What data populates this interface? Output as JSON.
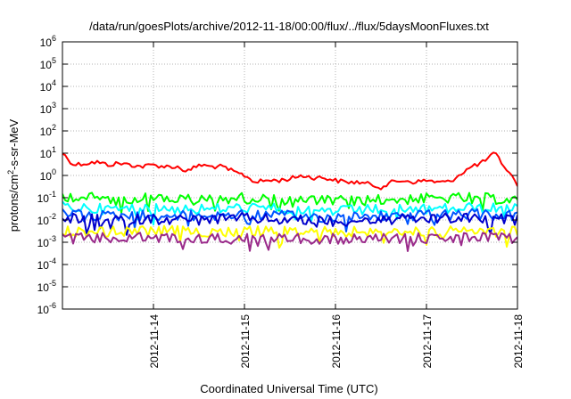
{
  "chart_data": {
    "type": "line",
    "title": "/data/run/goesPlots/archive/2012-11-18/00:00/flux/../flux/5daysMoonFluxes.txt",
    "xlabel": "Coordinated Universal Time (UTC)",
    "ylabel": {
      "pre": "protons/cm",
      "sup": "2",
      "post": "-s-sr-MeV"
    },
    "yscale": "log",
    "ylim": [
      1e-06,
      1000000.0
    ],
    "xlim": [
      "2012-11-13T00:00",
      "2012-11-18T00:00"
    ],
    "grid": true,
    "x_ticks": [
      "2012-11-14",
      "2012-11-15",
      "2012-11-16",
      "2012-11-17",
      "2012-11-18"
    ],
    "y_ticks": [
      {
        "value": 1e-06,
        "base": "10",
        "exp": "-6"
      },
      {
        "value": 1e-05,
        "base": "10",
        "exp": "-5"
      },
      {
        "value": 0.0001,
        "base": "10",
        "exp": "-4"
      },
      {
        "value": 0.001,
        "base": "10",
        "exp": "-3"
      },
      {
        "value": 0.01,
        "base": "10",
        "exp": "-2"
      },
      {
        "value": 0.1,
        "base": "10",
        "exp": "-1"
      },
      {
        "value": 1,
        "base": "10",
        "exp": "0"
      },
      {
        "value": 10,
        "base": "10",
        "exp": "1"
      },
      {
        "value": 100,
        "base": "10",
        "exp": "2"
      },
      {
        "value": 1000,
        "base": "10",
        "exp": "3"
      },
      {
        "value": 10000,
        "base": "10",
        "exp": "4"
      },
      {
        "value": 100000,
        "base": "10",
        "exp": "5"
      },
      {
        "value": 1000000,
        "base": "10",
        "exp": "6"
      }
    ],
    "series": [
      {
        "color": "#ff0000",
        "x": [
          "2012-11-13T00:00",
          "2012-11-13T03:00",
          "2012-11-13T06:00",
          "2012-11-13T09:00",
          "2012-11-13T12:00",
          "2012-11-13T15:00",
          "2012-11-13T18:00",
          "2012-11-13T21:00",
          "2012-11-14T00:00",
          "2012-11-14T03:00",
          "2012-11-14T06:00",
          "2012-11-14T09:00",
          "2012-11-14T12:00",
          "2012-11-14T15:00",
          "2012-11-14T18:00",
          "2012-11-14T21:00",
          "2012-11-15T00:00",
          "2012-11-15T03:00",
          "2012-11-15T06:00",
          "2012-11-15T09:00",
          "2012-11-15T12:00",
          "2012-11-15T15:00",
          "2012-11-15T18:00",
          "2012-11-15T21:00",
          "2012-11-16T00:00",
          "2012-11-16T03:00",
          "2012-11-16T06:00",
          "2012-11-16T09:00",
          "2012-11-16T12:00",
          "2012-11-16T15:00",
          "2012-11-16T18:00",
          "2012-11-16T21:00",
          "2012-11-17T00:00",
          "2012-11-17T03:00",
          "2012-11-17T06:00",
          "2012-11-17T09:00",
          "2012-11-17T12:00",
          "2012-11-17T15:00",
          "2012-11-17T18:00",
          "2012-11-17T21:00",
          "2012-11-18T00:00"
        ],
        "values": [
          10,
          3,
          3.5,
          4,
          3,
          3.5,
          3,
          2.5,
          3,
          2.5,
          2.5,
          1.5,
          3,
          2.5,
          2.5,
          1.5,
          1,
          0.5,
          0.6,
          0.6,
          0.7,
          1,
          0.8,
          0.8,
          0.6,
          0.5,
          0.5,
          0.4,
          0.3,
          0.5,
          0.6,
          0.5,
          0.6,
          0.5,
          0.5,
          1.2,
          2.5,
          4,
          10,
          2,
          0.4
        ]
      },
      {
        "color": "#00ff00",
        "x": [
          "2012-11-13T00:00",
          "2012-11-13T12:00",
          "2012-11-14T00:00",
          "2012-11-14T12:00",
          "2012-11-15T00:00",
          "2012-11-15T12:00",
          "2012-11-16T00:00",
          "2012-11-16T12:00",
          "2012-11-17T00:00",
          "2012-11-17T12:00",
          "2012-11-18T00:00"
        ],
        "values": [
          0.12,
          0.09,
          0.1,
          0.08,
          0.1,
          0.08,
          0.07,
          0.08,
          0.09,
          0.1,
          0.08
        ]
      },
      {
        "color": "#00ffff",
        "x": [
          "2012-11-13T00:00",
          "2012-11-13T12:00",
          "2012-11-14T00:00",
          "2012-11-14T12:00",
          "2012-11-15T00:00",
          "2012-11-15T12:00",
          "2012-11-16T00:00",
          "2012-11-16T12:00",
          "2012-11-17T00:00",
          "2012-11-17T12:00",
          "2012-11-18T00:00"
        ],
        "values": [
          0.04,
          0.03,
          0.035,
          0.03,
          0.035,
          0.03,
          0.025,
          0.03,
          0.03,
          0.035,
          0.03
        ]
      },
      {
        "color": "#0055ff",
        "x": [
          "2012-11-13T00:00",
          "2012-11-13T12:00",
          "2012-11-14T00:00",
          "2012-11-14T12:00",
          "2012-11-15T00:00",
          "2012-11-15T12:00",
          "2012-11-16T00:00",
          "2012-11-16T12:00",
          "2012-11-17T00:00",
          "2012-11-17T12:00",
          "2012-11-18T00:00"
        ],
        "values": [
          0.02,
          0.015,
          0.017,
          0.015,
          0.018,
          0.015,
          0.013,
          0.015,
          0.016,
          0.018,
          0.015
        ]
      },
      {
        "color": "#0000cc",
        "x": [
          "2012-11-13T00:00",
          "2012-11-13T12:00",
          "2012-11-14T00:00",
          "2012-11-14T12:00",
          "2012-11-15T00:00",
          "2012-11-15T12:00",
          "2012-11-16T00:00",
          "2012-11-16T12:00",
          "2012-11-17T00:00",
          "2012-11-17T12:00",
          "2012-11-18T00:00"
        ],
        "values": [
          0.012,
          0.01,
          0.011,
          0.01,
          0.012,
          0.01,
          0.009,
          0.01,
          0.011,
          0.012,
          0.01
        ]
      },
      {
        "color": "#ffff00",
        "x": [
          "2012-11-13T00:00",
          "2012-11-13T12:00",
          "2012-11-14T00:00",
          "2012-11-14T12:00",
          "2012-11-15T00:00",
          "2012-11-15T12:00",
          "2012-11-16T00:00",
          "2012-11-16T12:00",
          "2012-11-17T00:00",
          "2012-11-17T12:00",
          "2012-11-18T00:00"
        ],
        "values": [
          0.003,
          0.003,
          0.0032,
          0.003,
          0.0031,
          0.003,
          0.0029,
          0.003,
          0.003,
          0.0031,
          0.003
        ]
      },
      {
        "color": "#9a2a8a",
        "x": [
          "2012-11-13T00:00",
          "2012-11-13T12:00",
          "2012-11-14T00:00",
          "2012-11-14T12:00",
          "2012-11-15T00:00",
          "2012-11-15T12:00",
          "2012-11-16T00:00",
          "2012-11-16T12:00",
          "2012-11-17T00:00",
          "2012-11-17T12:00",
          "2012-11-18T00:00"
        ],
        "values": [
          0.0015,
          0.0015,
          0.0016,
          0.0014,
          0.0015,
          0.0015,
          0.0014,
          0.0015,
          0.0015,
          0.0016,
          0.0015
        ]
      }
    ]
  }
}
